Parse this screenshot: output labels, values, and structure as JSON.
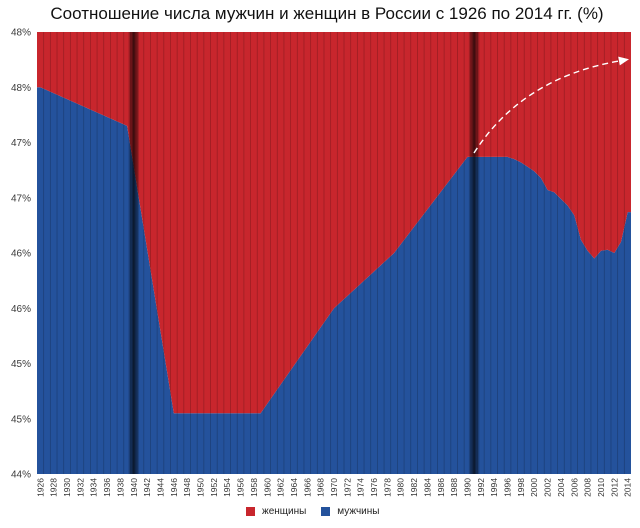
{
  "chart_data": {
    "type": "area",
    "title": "Соотношение числа мужчин и женщин в России с 1926 по 2014 гг. (%)",
    "x_range": [
      1926,
      2014
    ],
    "ylim": [
      44,
      48
    ],
    "grid": true,
    "legend": "bottom",
    "highlight_years": [
      1940,
      1991
    ],
    "y_ticks": [
      {
        "value": 48,
        "label": "48%"
      },
      {
        "value": 47.5,
        "label": "48%"
      },
      {
        "value": 47,
        "label": "47%"
      },
      {
        "value": 46.5,
        "label": "47%"
      },
      {
        "value": 46,
        "label": "46%"
      },
      {
        "value": 45.5,
        "label": "46%"
      },
      {
        "value": 45,
        "label": "45%"
      },
      {
        "value": 44.5,
        "label": "45%"
      },
      {
        "value": 44,
        "label": "44%"
      }
    ],
    "x_ticks": [
      "1926",
      "1928",
      "1930",
      "1932",
      "1934",
      "1936",
      "1938",
      "1940",
      "1942",
      "1944",
      "1946",
      "1948",
      "1950",
      "1952",
      "1954",
      "1956",
      "1958",
      "1960",
      "1962",
      "1964",
      "1966",
      "1968",
      "1970",
      "1972",
      "1974",
      "1976",
      "1978",
      "1980",
      "1982",
      "1984",
      "1986",
      "1988",
      "1990",
      "1992",
      "1994",
      "1996",
      "1998",
      "2000",
      "2002",
      "2004",
      "2006",
      "2008",
      "2010",
      "2012",
      "2014"
    ],
    "x": [
      1926,
      1939,
      1946,
      1959,
      1970,
      1979,
      1990,
      1996,
      1997,
      1998,
      1999,
      2000,
      2001,
      2002,
      2003,
      2004,
      2005,
      2006,
      2007,
      2008,
      2009,
      2010,
      2011,
      2012,
      2013,
      2014
    ],
    "series": [
      {
        "name": "мужчины",
        "color": "#24529c",
        "values": [
          47.5,
          47.15,
          44.55,
          44.55,
          45.5,
          46.0,
          46.87,
          46.87,
          46.85,
          46.82,
          46.78,
          46.74,
          46.68,
          46.57,
          46.55,
          46.49,
          46.43,
          46.34,
          46.12,
          46.02,
          45.95,
          46.02,
          46.03,
          46.0,
          46.1,
          46.37
        ]
      },
      {
        "name": "женщины",
        "color": "#c8262d",
        "values": [
          52.5,
          52.85,
          55.45,
          55.45,
          54.5,
          54.0,
          53.13,
          53.13,
          53.15,
          53.18,
          53.22,
          53.26,
          53.32,
          53.43,
          53.45,
          53.51,
          53.57,
          53.66,
          53.88,
          53.98,
          54.05,
          53.98,
          53.97,
          54.0,
          53.9,
          53.63
        ]
      }
    ]
  }
}
